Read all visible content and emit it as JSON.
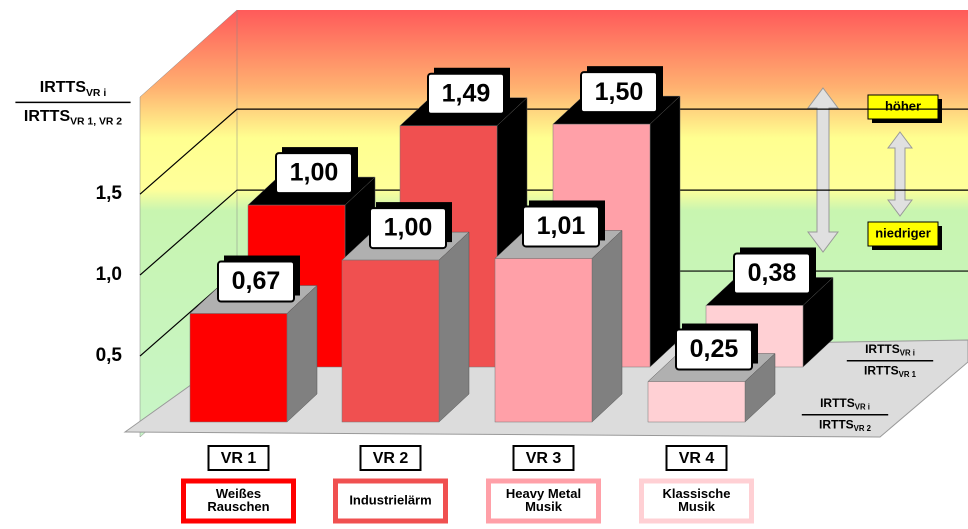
{
  "chart_data": {
    "type": "bar3d",
    "y_label": {
      "numerator": {
        "text": "IRTTS",
        "sub": "VR i"
      },
      "denominator": {
        "text": "IRTTS",
        "sub": "VR 1, VR 2"
      }
    },
    "categories": [
      "VR 1",
      "VR 2",
      "VR 3",
      "VR 4"
    ],
    "category_names": [
      [
        "Weißes",
        "Rauschen"
      ],
      [
        "Industrielärm"
      ],
      [
        "Heavy Metal",
        "Musik"
      ],
      [
        "Klassische",
        "Musik"
      ]
    ],
    "category_colors": [
      "#ff0000",
      "#f05050",
      "#ffa0a8",
      "#ffd0d4"
    ],
    "ylim": [
      0,
      2.1
    ],
    "yticks": [
      {
        "value": 0.5,
        "label": "0,5"
      },
      {
        "value": 1.0,
        "label": "1,0"
      },
      {
        "value": 1.5,
        "label": "1,5"
      }
    ],
    "grid": true,
    "series": [
      {
        "name": {
          "numerator": {
            "text": "IRTTS",
            "sub": "VR i"
          },
          "denominator": {
            "text": "IRTTS",
            "sub": "VR 1"
          }
        },
        "side_color": "#000000",
        "values": [
          1.0,
          1.49,
          1.5,
          0.38
        ],
        "value_labels": [
          "1,00",
          "1,49",
          "1,50",
          "0,38"
        ]
      },
      {
        "name": {
          "numerator": {
            "text": "IRTTS",
            "sub": "VR i"
          },
          "denominator": {
            "text": "IRTTS",
            "sub": "VR 2"
          }
        },
        "side_color": "#808080",
        "values": [
          0.67,
          1.0,
          1.01,
          0.25
        ],
        "value_labels": [
          "0,67",
          "1,00",
          "1,01",
          "0,25"
        ]
      }
    ],
    "annotations": [
      "höher",
      "niedriger"
    ]
  }
}
